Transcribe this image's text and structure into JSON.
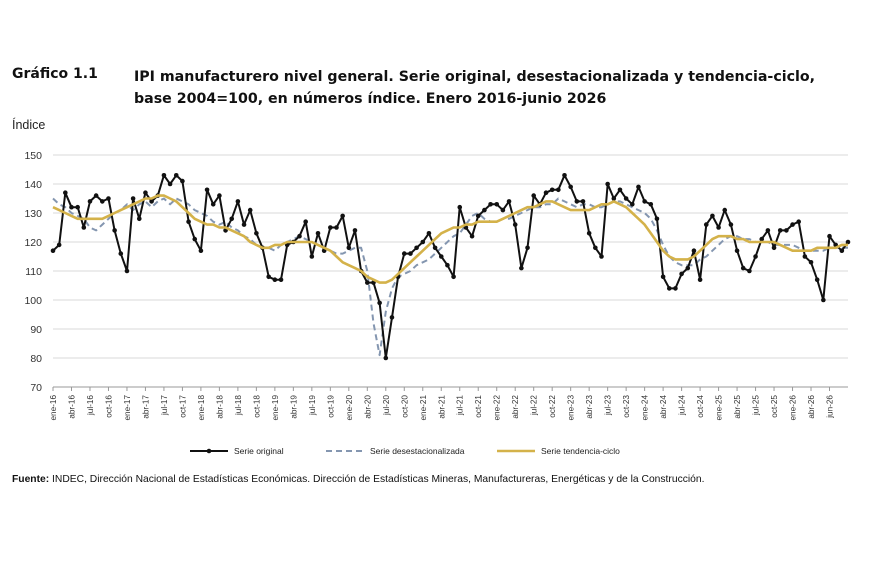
{
  "figure": {
    "label": "Gráfico 1.1",
    "title": "IPI manufacturero nivel general. Serie original, desestacionalizada y tendencia-ciclo, base 2004=100, en números índice. Enero 2016-junio 2026"
  },
  "source": {
    "label": "Fuente:",
    "text": " INDEC, Dirección Nacional de Estadísticas Económicas. Dirección de Estadísticas Mineras, Manufactureras, Energéticas y de la Construcción."
  },
  "colors": {
    "original": "#111111",
    "desest": "#8496b0",
    "tendencia": "#d4b24a",
    "grid": "#d9d9d9"
  },
  "chart_data": {
    "type": "line",
    "ylabel": "Índice",
    "ylim": [
      70,
      150
    ],
    "yticks": [
      70,
      80,
      90,
      100,
      110,
      120,
      130,
      140,
      150
    ],
    "grid": "horizontal",
    "legend_position": "bottom",
    "x_tick_labels": [
      "ene-16",
      "abr-16",
      "jul-16",
      "oct-16",
      "ene-17",
      "abr-17",
      "jul-17",
      "oct-17",
      "ene-18",
      "abr-18",
      "jul-18",
      "oct-18",
      "ene-19",
      "abr-19",
      "jul-19",
      "oct-19",
      "ene-20",
      "abr-20",
      "jul-20",
      "oct-20",
      "ene-21",
      "abr-21",
      "jul-21",
      "oct-21",
      "ene-22",
      "abr-22",
      "jul-22",
      "oct-22",
      "ene-23",
      "abr-23",
      "jul-23",
      "oct-23",
      "ene-24",
      "abr-24",
      "jul-24",
      "oct-24",
      "ene-25",
      "abr-25",
      "jul-25",
      "oct-25",
      "ene-26",
      "abr-26",
      "jun-26"
    ],
    "x_start": "ene-16",
    "series": [
      {
        "name": "Serie original",
        "style": "solid-markers",
        "values": [
          117,
          119,
          137,
          132,
          132,
          125,
          134,
          136,
          134,
          135,
          124,
          116,
          110,
          135,
          128,
          137,
          134,
          136,
          143,
          140,
          143,
          141,
          127,
          121,
          117,
          138,
          133,
          136,
          124,
          128,
          134,
          126,
          131,
          123,
          118,
          108,
          107,
          107,
          119,
          120,
          122,
          127,
          115,
          123,
          117,
          125,
          125,
          129,
          118,
          124,
          110,
          106,
          106,
          99,
          80,
          94,
          108,
          116,
          116,
          118,
          120,
          123,
          118,
          115,
          112,
          108,
          132,
          125,
          122,
          129,
          131,
          133,
          133,
          131,
          134,
          126,
          111,
          118,
          136,
          133,
          137,
          138,
          138,
          143,
          139,
          134,
          134,
          123,
          118,
          115,
          140,
          135,
          138,
          135,
          133,
          139,
          134,
          133,
          128,
          108,
          104,
          104,
          109,
          111,
          117,
          107,
          126,
          129,
          125,
          131,
          126,
          117,
          111,
          110,
          115,
          121,
          124,
          118,
          124,
          124,
          126,
          127,
          115,
          113,
          107,
          100,
          122,
          119,
          117,
          120
        ]
      },
      {
        "name": "Serie desestacionalizada",
        "style": "dashed",
        "values": [
          135,
          133,
          132,
          130,
          129,
          128,
          125,
          124,
          126,
          128,
          130,
          131,
          133,
          131,
          133,
          134,
          132,
          134,
          135,
          133,
          135,
          134,
          133,
          131,
          130,
          129,
          127,
          126,
          127,
          125,
          124,
          122,
          121,
          119,
          118,
          118,
          117,
          119,
          120,
          121,
          122,
          121,
          120,
          119,
          118,
          117,
          116,
          116,
          117,
          118,
          118,
          110,
          92,
          81,
          96,
          104,
          108,
          109,
          110,
          112,
          113,
          114,
          116,
          118,
          120,
          122,
          123,
          126,
          129,
          130,
          128,
          127,
          127,
          128,
          128,
          129,
          130,
          131,
          132,
          132,
          133,
          133,
          135,
          134,
          133,
          132,
          133,
          133,
          132,
          132,
          133,
          134,
          134,
          133,
          132,
          131,
          130,
          128,
          124,
          119,
          115,
          113,
          112,
          112,
          112,
          114,
          115,
          117,
          119,
          121,
          122,
          122,
          121,
          121,
          120,
          120,
          120,
          119,
          119,
          119,
          119,
          118,
          117,
          117,
          117,
          117,
          118,
          118,
          118,
          118
        ]
      },
      {
        "name": "Serie tendencia-ciclo",
        "style": "solid",
        "values": [
          132,
          131,
          130,
          129,
          128,
          128,
          128,
          128,
          128,
          129,
          130,
          131,
          132,
          133,
          134,
          135,
          135,
          136,
          136,
          135,
          134,
          132,
          130,
          128,
          127,
          126,
          126,
          125,
          125,
          124,
          123,
          122,
          120,
          119,
          118,
          118,
          119,
          119,
          120,
          120,
          120,
          120,
          120,
          119,
          118,
          117,
          115,
          113,
          112,
          111,
          110,
          108,
          107,
          106,
          106,
          107,
          109,
          111,
          113,
          115,
          117,
          119,
          121,
          123,
          124,
          125,
          125,
          126,
          126,
          127,
          127,
          127,
          127,
          128,
          129,
          130,
          131,
          132,
          132,
          133,
          134,
          134,
          133,
          132,
          131,
          131,
          131,
          131,
          132,
          133,
          133,
          134,
          133,
          132,
          130,
          128,
          126,
          123,
          120,
          117,
          115,
          114,
          114,
          114,
          115,
          117,
          119,
          121,
          122,
          122,
          122,
          121,
          121,
          120,
          120,
          120,
          120,
          120,
          119,
          118,
          117,
          117,
          117,
          117,
          118,
          118,
          118,
          118,
          119,
          119
        ]
      }
    ]
  }
}
